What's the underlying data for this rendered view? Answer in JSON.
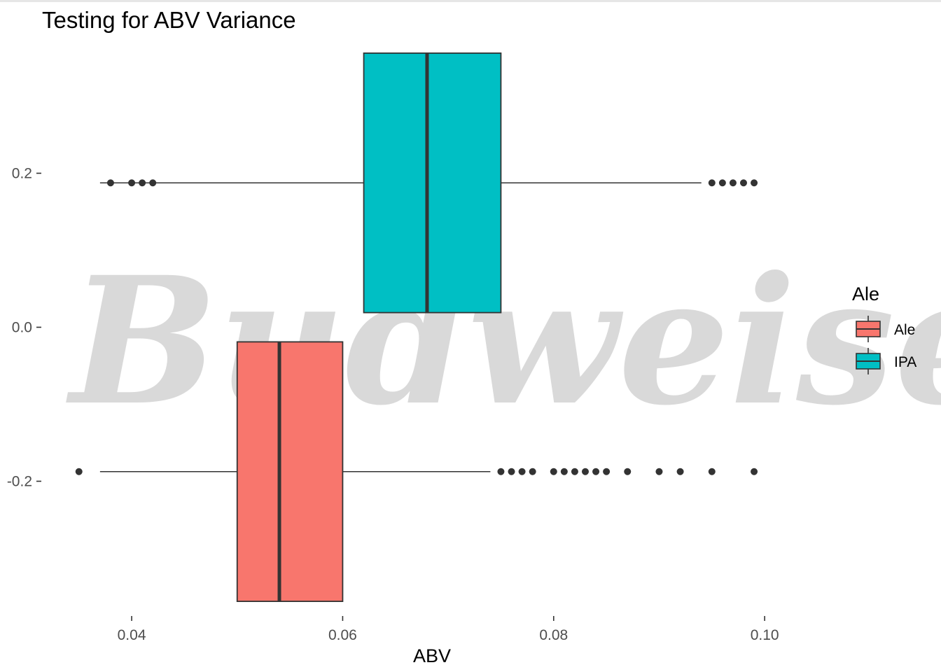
{
  "chart_data": {
    "type": "boxplot",
    "orientation": "horizontal",
    "title": "Testing for ABV Variance",
    "xlabel": "ABV",
    "ylabel": "",
    "xlim": [
      0.0315,
      0.1055
    ],
    "ylim": [
      -0.375,
      0.375
    ],
    "x_ticks": [
      0.04,
      0.06,
      0.08,
      0.1
    ],
    "x_tick_labels": [
      "0.04",
      "0.06",
      "0.08",
      "0.10"
    ],
    "y_ticks": [
      0.2,
      0.0,
      -0.2
    ],
    "y_tick_labels": [
      "0.2",
      "0.0",
      "-0.2"
    ],
    "grid": false,
    "legend": {
      "title": "Ale",
      "placement": "right",
      "entries": [
        {
          "label": "Ale",
          "color": "#F8766D"
        },
        {
          "label": "IPA",
          "color": "#00BFC4"
        }
      ]
    },
    "watermark": "Budweiser",
    "series": [
      {
        "name": "IPA",
        "color": "#00BFC4",
        "y_range": [
          0.019,
          0.356
        ],
        "whisker_low": 0.037,
        "q1": 0.062,
        "median": 0.068,
        "q3": 0.075,
        "whisker_high": 0.094,
        "outliers": [
          0.038,
          0.04,
          0.041,
          0.042,
          0.095,
          0.096,
          0.097,
          0.098,
          0.099
        ]
      },
      {
        "name": "Ale",
        "color": "#F8766D",
        "y_range": [
          -0.356,
          -0.019
        ],
        "whisker_low": 0.037,
        "q1": 0.05,
        "median": 0.054,
        "q3": 0.06,
        "whisker_high": 0.074,
        "outliers": [
          0.035,
          0.075,
          0.076,
          0.077,
          0.078,
          0.08,
          0.081,
          0.082,
          0.083,
          0.084,
          0.085,
          0.087,
          0.09,
          0.092,
          0.095,
          0.099
        ]
      }
    ]
  }
}
